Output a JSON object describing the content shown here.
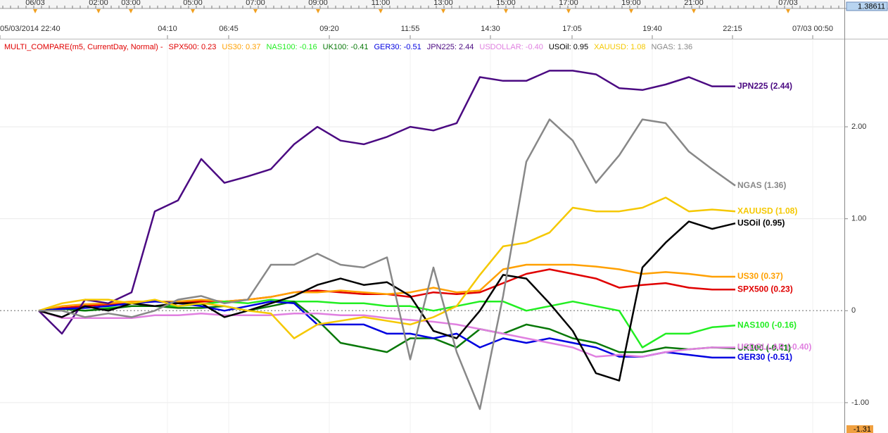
{
  "chart_data": {
    "type": "line",
    "legend_prefix": "MULTI_COMPARE(m5, CurrentDay, Normal) -",
    "top_price": "1.38611",
    "bottom_price": "-1.31",
    "xlim": [
      0,
      120
    ],
    "ylim": [
      -1.33,
      2.95
    ],
    "yticks": [
      {
        "value": 2,
        "label": "2.00"
      },
      {
        "value": 1,
        "label": "1.00"
      },
      0,
      {
        "value": -1,
        "label": "-1.00"
      }
    ],
    "xticks": [
      {
        "value": 0,
        "label": "05/03/2014 22:40"
      },
      {
        "value": 23.8,
        "label": "04:10"
      },
      {
        "value": 32.5,
        "label": "06:45"
      },
      {
        "value": 46.8,
        "label": "09:20"
      },
      {
        "value": 58.3,
        "label": "11:55"
      },
      {
        "value": 69.7,
        "label": "14:30"
      },
      {
        "value": 81.3,
        "label": "17:05"
      },
      {
        "value": 92.7,
        "label": "19:40"
      },
      {
        "value": 104.1,
        "label": "22:15"
      },
      {
        "value": 115.5,
        "label": "07/03 00:50"
      }
    ],
    "ruler_ticks": [
      {
        "value": 5,
        "label": "06/03"
      },
      {
        "value": 14,
        "label": "02:00"
      },
      {
        "value": 18.6,
        "label": "03:00"
      },
      {
        "value": 27.4,
        "label": "05:00"
      },
      {
        "value": 36.3,
        "label": "07:00"
      },
      {
        "value": 45.2,
        "label": "09:00"
      },
      {
        "value": 54.1,
        "label": "11:00"
      },
      {
        "value": 63,
        "label": "13:00"
      },
      {
        "value": 71.9,
        "label": "15:00"
      },
      {
        "value": 80.8,
        "label": "17:00"
      },
      {
        "value": 89.7,
        "label": "19:00"
      },
      {
        "value": 98.6,
        "label": "21:00"
      },
      {
        "value": 112,
        "label": "07/03"
      }
    ],
    "grid": true,
    "x": [
      5.5,
      8.8,
      12.1,
      15.4,
      18.7,
      22,
      25.3,
      28.6,
      31.9,
      35.2,
      38.5,
      41.8,
      45.1,
      48.4,
      51.7,
      55,
      58.3,
      61.6,
      64.9,
      68.2,
      71.5,
      74.8,
      78.1,
      81.4,
      84.7,
      88,
      91.3,
      94.6,
      97.9,
      101.2,
      104.5
    ],
    "series": [
      {
        "name": "SPX500",
        "legend_label": "SPX500: 0.23",
        "end_label": "SPX500 (0.23)",
        "color": "#e00000",
        "values": [
          0,
          0.03,
          0.05,
          0.07,
          0.08,
          0.1,
          0.1,
          0.1,
          0.1,
          0.12,
          0.15,
          0.2,
          0.22,
          0.2,
          0.18,
          0.18,
          0.15,
          0.2,
          0.18,
          0.2,
          0.3,
          0.4,
          0.45,
          0.4,
          0.35,
          0.25,
          0.28,
          0.3,
          0.25,
          0.23,
          0.23
        ]
      },
      {
        "name": "US30",
        "legend_label": "US30: 0.37",
        "end_label": "US30 (0.37)",
        "color": "#ffa000",
        "values": [
          0,
          0.05,
          0.07,
          0.08,
          0.1,
          0.1,
          0.1,
          0.12,
          0.1,
          0.12,
          0.15,
          0.2,
          0.2,
          0.22,
          0.2,
          0.18,
          0.2,
          0.25,
          0.2,
          0.22,
          0.45,
          0.5,
          0.5,
          0.5,
          0.48,
          0.45,
          0.4,
          0.42,
          0.4,
          0.37,
          0.37
        ]
      },
      {
        "name": "NAS100",
        "legend_label": "NAS100: -0.16",
        "end_label": "NAS100 (-0.16)",
        "color": "#22ee22",
        "values": [
          0,
          0.02,
          0,
          0.03,
          0.05,
          0.05,
          0.05,
          0.07,
          0.1,
          0.08,
          0.12,
          0.1,
          0.1,
          0.08,
          0.08,
          0.05,
          0.05,
          0,
          0.05,
          0.1,
          0.1,
          0,
          0.05,
          0.1,
          0.05,
          0,
          -0.4,
          -0.25,
          -0.25,
          -0.18,
          -0.16
        ]
      },
      {
        "name": "UK100",
        "legend_label": "UK100: -0.41",
        "end_label": "UK100 (-0.41)",
        "color": "#087808",
        "values": [
          0,
          0.02,
          0,
          0.02,
          0.05,
          0.05,
          0.03,
          0.03,
          0.05,
          0,
          0.05,
          0.1,
          -0.1,
          -0.35,
          -0.4,
          -0.45,
          -0.3,
          -0.3,
          -0.4,
          -0.2,
          -0.25,
          -0.15,
          -0.2,
          -0.3,
          -0.35,
          -0.45,
          -0.45,
          -0.4,
          -0.42,
          -0.4,
          -0.41
        ]
      },
      {
        "name": "GER30",
        "legend_label": "GER30: -0.51",
        "end_label": "GER30 (-0.51)",
        "color": "#0000e0",
        "values": [
          0,
          0.02,
          0.03,
          0.05,
          0.08,
          0.1,
          0.08,
          0.05,
          0,
          0.05,
          0.1,
          0.08,
          -0.15,
          -0.15,
          -0.15,
          -0.25,
          -0.25,
          -0.3,
          -0.25,
          -0.4,
          -0.3,
          -0.35,
          -0.3,
          -0.35,
          -0.4,
          -0.5,
          -0.5,
          -0.45,
          -0.48,
          -0.51,
          -0.51
        ]
      },
      {
        "name": "JPN225",
        "legend_label": "JPN225: 2.44",
        "end_label": "JPN225 (2.44)",
        "color": "#4b0a82",
        "values": [
          0,
          -0.25,
          0.12,
          0.08,
          0.2,
          1.08,
          1.2,
          1.65,
          1.39,
          1.46,
          1.54,
          1.81,
          2,
          1.85,
          1.81,
          1.89,
          2,
          1.96,
          2.04,
          2.54,
          2.5,
          2.5,
          2.61,
          2.61,
          2.57,
          2.42,
          2.4,
          2.46,
          2.54,
          2.44,
          2.44
        ]
      },
      {
        "name": "USDOLLAR",
        "legend_label": "USDOLLAR: -0.40",
        "end_label": "USDOLLAR (-0.40)",
        "color": "#e080e0",
        "values": [
          0,
          -0.08,
          -0.08,
          -0.08,
          -0.08,
          -0.05,
          -0.05,
          -0.03,
          -0.05,
          -0.05,
          -0.05,
          -0.03,
          -0.03,
          -0.05,
          -0.05,
          -0.08,
          -0.1,
          -0.12,
          -0.15,
          -0.2,
          -0.25,
          -0.3,
          -0.35,
          -0.4,
          -0.5,
          -0.48,
          -0.5,
          -0.45,
          -0.42,
          -0.4,
          -0.4
        ]
      },
      {
        "name": "USOil",
        "legend_label": "USOil: 0.95",
        "end_label": "USOil (0.95)",
        "color": "#000000",
        "values": [
          0,
          -0.07,
          0.05,
          0,
          0.08,
          0.05,
          0.08,
          0.08,
          -0.07,
          0,
          0.08,
          0.16,
          0.28,
          0.35,
          0.28,
          0.31,
          0.16,
          -0.22,
          -0.3,
          0,
          0.39,
          0.35,
          0.08,
          -0.22,
          -0.68,
          -0.76,
          0.47,
          0.74,
          0.97,
          0.89,
          0.95
        ]
      },
      {
        "name": "XAUUSD",
        "legend_label": "XAUUSD: 1.08",
        "end_label": "XAUUSD (1.08)",
        "color": "#f5c800",
        "values": [
          0,
          0.08,
          0.12,
          0.12,
          0.08,
          0.12,
          0.05,
          0.08,
          0.05,
          0,
          -0.03,
          -0.3,
          -0.15,
          -0.11,
          -0.07,
          -0.11,
          -0.15,
          -0.07,
          0.05,
          0.39,
          0.7,
          0.74,
          0.85,
          1.12,
          1.08,
          1.08,
          1.12,
          1.23,
          1.08,
          1.1,
          1.08
        ]
      },
      {
        "name": "NGAS",
        "legend_label": "NGAS: 1.36",
        "end_label": "NGAS (1.36)",
        "color": "#888888",
        "values": [
          0,
          0,
          -0.07,
          -0.03,
          -0.07,
          0,
          0.12,
          0.16,
          0.08,
          0.12,
          0.5,
          0.5,
          0.62,
          0.5,
          0.47,
          0.58,
          -0.53,
          0.47,
          -0.45,
          -1.07,
          0.16,
          1.62,
          2.08,
          1.85,
          1.39,
          1.69,
          2.08,
          2.04,
          1.73,
          1.54,
          1.36
        ]
      }
    ]
  }
}
